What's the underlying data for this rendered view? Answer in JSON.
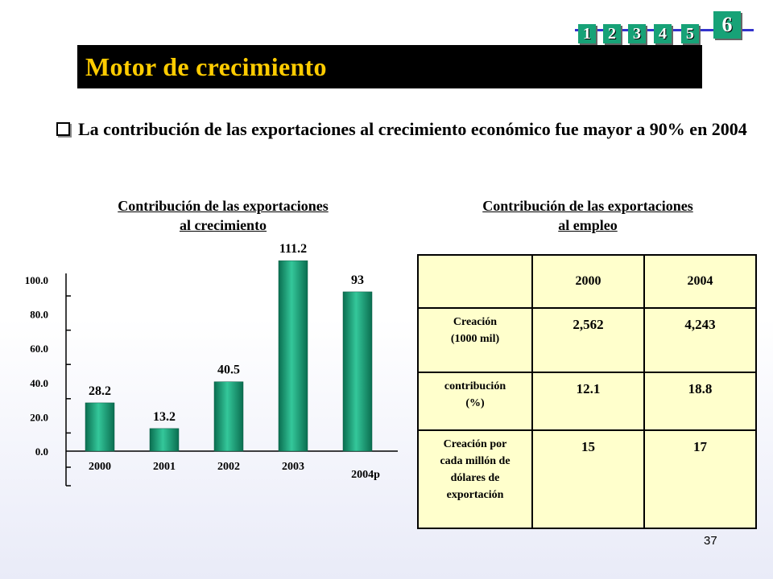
{
  "nav": {
    "items": [
      "1",
      "2",
      "3",
      "4",
      "5"
    ],
    "current": "6"
  },
  "title": "Motor de crecimiento",
  "bullet": "La contribución de las exportaciones al crecimiento económico fue mayor a 90% en 2004",
  "left_heading": {
    "line1": "Contribución de las exportaciones",
    "line2": "al crecimiento"
  },
  "right_heading": {
    "line1": "Contribución de las exportaciones",
    "line2": "al empleo"
  },
  "chart_data": {
    "type": "bar",
    "categories": [
      "2000",
      "2001",
      "2002",
      "2003",
      "2004p"
    ],
    "values": [
      28.2,
      13.2,
      40.5,
      111.2,
      93
    ],
    "value_labels": [
      "28.2",
      "13.2",
      "40.5",
      "111.2",
      "93"
    ],
    "yticks": [
      "0.0",
      "20.0",
      "40.0",
      "60.0",
      "80.0",
      "100.0"
    ],
    "ylim": [
      0,
      100
    ],
    "colors": {
      "bar": "#14a07a",
      "bar_light": "#34c79a",
      "bar_dark": "#0a6e50"
    }
  },
  "table": {
    "headers": [
      "",
      "2000",
      "2004"
    ],
    "rows": [
      {
        "label": "Creación (1000 mil)",
        "label_lines": [
          "Creación",
          "(1000 mil)"
        ],
        "values": [
          "2,562",
          "4,243"
        ]
      },
      {
        "label": "contribución (%)",
        "label_lines": [
          "contribución",
          "(%)"
        ],
        "values": [
          "12.1",
          "18.8"
        ]
      },
      {
        "label": "Creación por cada millón de dólares de exportación",
        "label_lines": [
          "Creación por",
          "cada millón de",
          "dólares de",
          "exportación"
        ],
        "values": [
          "15",
          "17"
        ]
      }
    ]
  },
  "page_number": "37"
}
